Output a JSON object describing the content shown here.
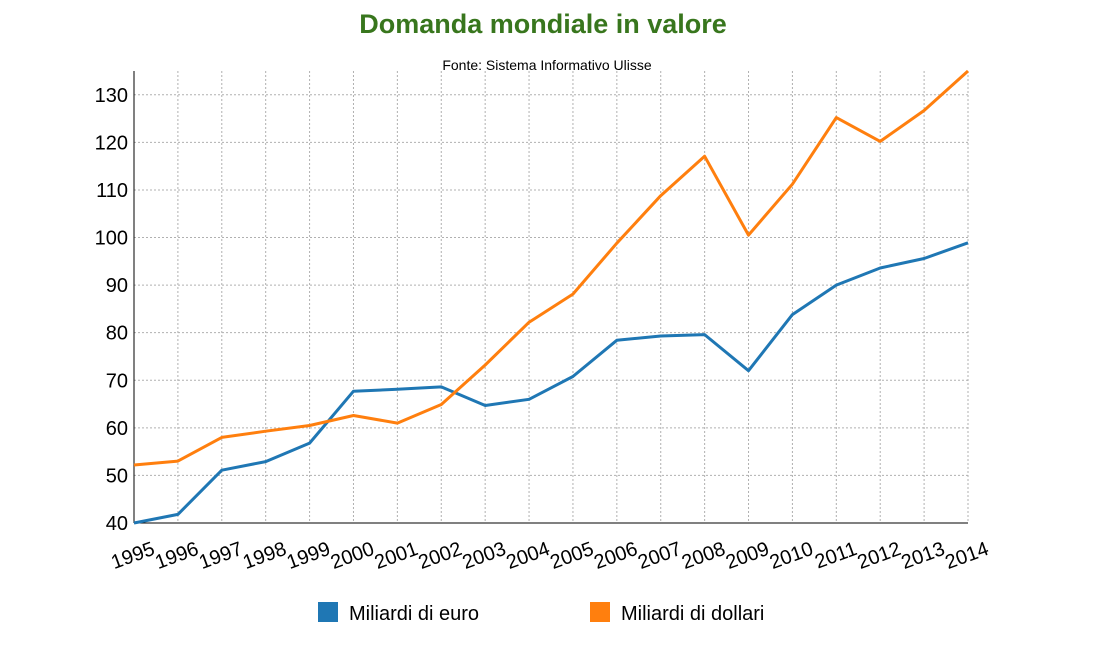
{
  "chart_data": {
    "type": "line",
    "title": "Domanda mondiale in valore",
    "subtitle": "Fonte: Sistema Informativo Ulisse",
    "xlabel": "",
    "ylabel": "",
    "x": [
      "1995",
      "1996",
      "1997",
      "1998",
      "1999",
      "2000",
      "2001",
      "2002",
      "2003",
      "2004",
      "2005",
      "2006",
      "2007",
      "2008",
      "2009",
      "2010",
      "2011",
      "2012",
      "2013",
      "2014"
    ],
    "ylim": [
      40,
      135
    ],
    "yticks": [
      40,
      50,
      60,
      70,
      80,
      90,
      100,
      110,
      120,
      130
    ],
    "grid": true,
    "legend_position": "bottom",
    "series": [
      {
        "name": "Miliardi di euro",
        "color": "#1f77b4",
        "values": [
          40,
          41.8,
          51.1,
          52.9,
          56.8,
          67.7,
          68.1,
          68.6,
          64.7,
          66,
          70.8,
          78.4,
          79.3,
          79.6,
          72,
          83.8,
          90,
          93.6,
          95.6,
          98.9
        ]
      },
      {
        "name": "Miliardi di dollari",
        "color": "#ff7f0e",
        "values": [
          52.2,
          53,
          58,
          59.3,
          60.5,
          62.6,
          61,
          64.9,
          73.2,
          82.2,
          88.1,
          98.8,
          108.8,
          117.1,
          100.5,
          111.2,
          125.2,
          120.2,
          126.7,
          135
        ]
      }
    ]
  }
}
